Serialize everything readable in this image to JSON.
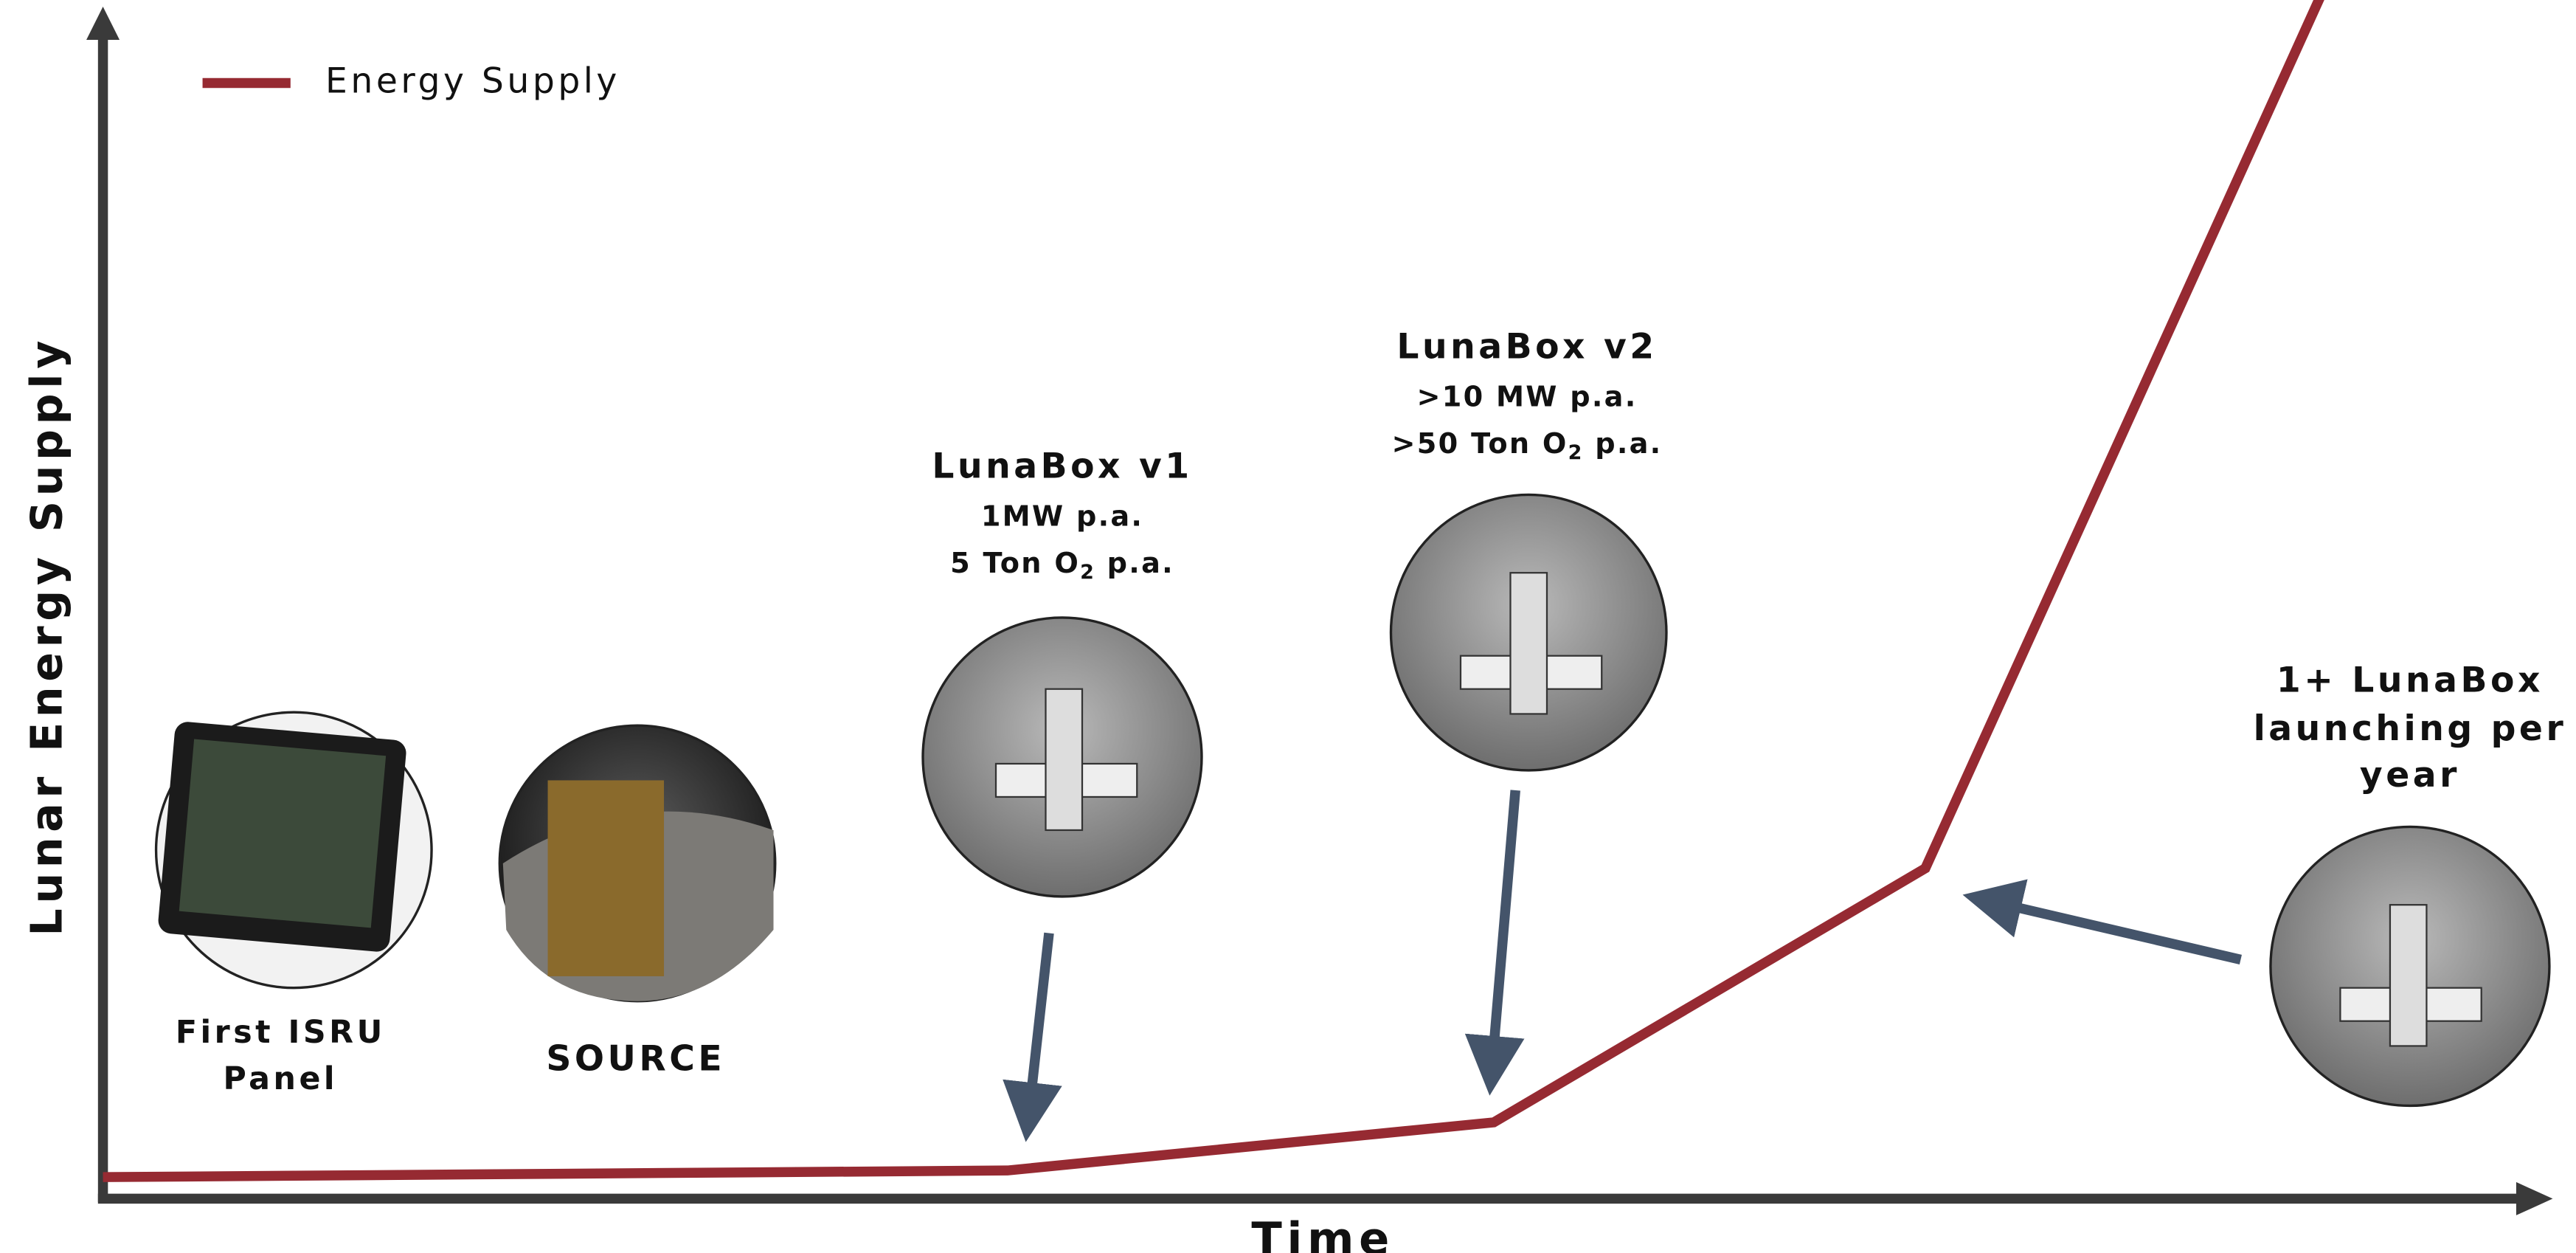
{
  "legend": {
    "label": "Energy Supply"
  },
  "axes": {
    "y_label": "Lunar Energy Supply",
    "x_label": "Time"
  },
  "milestones": [
    {
      "lines": [
        "First ISRU",
        "Panel"
      ]
    },
    {
      "lines": [
        "SOURCE"
      ]
    },
    {
      "title": "LunaBox v1",
      "line1": "1MW p.a.",
      "line2": {
        "before": "5 Ton O",
        "sub": "2",
        "after": " p.a."
      }
    },
    {
      "title": "LunaBox v2",
      "line1": ">10 MW  p.a.",
      "line2": {
        "before": ">50 Ton O",
        "sub": "2",
        "after": " p.a."
      }
    },
    {
      "lines": [
        "1+ LunaBox",
        "launching per",
        "year"
      ]
    }
  ]
}
